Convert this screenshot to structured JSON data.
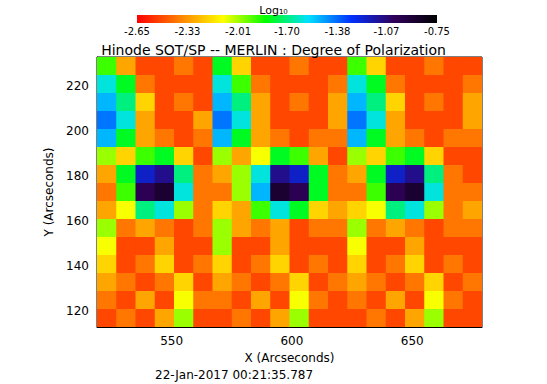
{
  "chart_data": {
    "type": "heatmap",
    "title": "Hinode SOT/SP -- MERLIN : Degree of Polarization",
    "x_label": "X (Arcseconds)",
    "y_label": "Y (Arcseconds)",
    "annotation": "22-Jan-2017 00:21:35.787",
    "xlim": [
      519,
      679
    ],
    "ylim": [
      113,
      233
    ],
    "xticks": [
      550,
      600,
      650
    ],
    "yticks": [
      120,
      140,
      160,
      180,
      200,
      220
    ],
    "x": [
      523,
      531,
      539,
      547,
      555,
      563,
      571,
      579,
      587,
      595,
      603,
      611,
      619,
      627,
      635,
      643,
      651,
      659,
      667,
      675
    ],
    "y": [
      229,
      221,
      213,
      205,
      197,
      189,
      181,
      173,
      165,
      157,
      149,
      141,
      133,
      125,
      117
    ],
    "values": [
      [
        -1.9,
        -2.3,
        -2.5,
        -2.5,
        -2.4,
        -2.5,
        -1.8,
        -2.2,
        -2.5,
        -2.5,
        -2.4,
        -2.5,
        -2.5,
        -1.9,
        -2.2,
        -2.5,
        -2.5,
        -2.4,
        -2.5,
        -2.5
      ],
      [
        -1.6,
        -1.8,
        -2.4,
        -2.5,
        -2.5,
        -2.5,
        -1.6,
        -1.9,
        -2.4,
        -2.5,
        -2.5,
        -2.5,
        -2.4,
        -1.6,
        -1.8,
        -2.4,
        -2.5,
        -2.5,
        -2.5,
        -2.4
      ],
      [
        -1.5,
        -1.7,
        -2.2,
        -2.5,
        -2.4,
        -2.5,
        -1.5,
        -1.7,
        -2.3,
        -2.5,
        -2.4,
        -2.5,
        -2.3,
        -1.5,
        -1.7,
        -2.2,
        -2.5,
        -2.4,
        -2.5,
        -2.3
      ],
      [
        -1.4,
        -1.6,
        -2.3,
        -2.5,
        -2.5,
        -2.3,
        -1.4,
        -1.6,
        -2.3,
        -2.5,
        -2.5,
        -2.5,
        -2.3,
        -1.4,
        -1.6,
        -2.3,
        -2.5,
        -2.5,
        -2.5,
        -2.3
      ],
      [
        -1.5,
        -1.8,
        -2.3,
        -2.4,
        -2.5,
        -2.4,
        -1.5,
        -1.8,
        -2.3,
        -2.4,
        -2.5,
        -2.4,
        -2.4,
        -1.5,
        -1.8,
        -2.3,
        -2.4,
        -2.5,
        -2.4,
        -2.4
      ],
      [
        -2.0,
        -2.2,
        -1.9,
        -1.8,
        -2.2,
        -2.5,
        -2.0,
        -2.3,
        -2.1,
        -1.8,
        -1.9,
        -2.3,
        -2.5,
        -2.0,
        -2.2,
        -1.9,
        -1.8,
        -2.2,
        -2.5,
        -2.5
      ],
      [
        -2.3,
        -1.8,
        -1.2,
        -1.1,
        -1.7,
        -2.4,
        -2.3,
        -2.0,
        -1.6,
        -1.1,
        -1.2,
        -1.8,
        -2.4,
        -2.3,
        -1.8,
        -1.2,
        -1.1,
        -1.7,
        -2.4,
        -2.5
      ],
      [
        -2.4,
        -1.9,
        -1.0,
        -0.9,
        -1.6,
        -2.4,
        -2.4,
        -2.0,
        -1.5,
        -0.9,
        -1.0,
        -1.8,
        -2.4,
        -2.4,
        -1.9,
        -1.0,
        -0.9,
        -1.6,
        -2.4,
        -2.4
      ],
      [
        -2.3,
        -2.1,
        -1.7,
        -1.6,
        -2.0,
        -2.4,
        -2.2,
        -2.3,
        -1.9,
        -1.6,
        -1.8,
        -2.2,
        -2.3,
        -2.2,
        -2.1,
        -1.7,
        -1.6,
        -2.0,
        -2.4,
        -2.3
      ],
      [
        -2.0,
        -2.4,
        -2.3,
        -2.4,
        -2.5,
        -2.4,
        -2.0,
        -2.3,
        -2.4,
        -2.3,
        -2.5,
        -2.4,
        -2.4,
        -2.0,
        -2.4,
        -2.3,
        -2.4,
        -2.5,
        -2.4,
        -2.4
      ],
      [
        -2.1,
        -2.5,
        -2.5,
        -2.3,
        -2.5,
        -2.5,
        -2.0,
        -2.5,
        -2.5,
        -2.3,
        -2.5,
        -2.5,
        -2.5,
        -2.1,
        -2.5,
        -2.5,
        -2.3,
        -2.5,
        -2.5,
        -2.5
      ],
      [
        -2.2,
        -2.5,
        -2.4,
        -2.2,
        -2.5,
        -2.4,
        -2.2,
        -2.5,
        -2.4,
        -2.2,
        -2.5,
        -2.4,
        -2.5,
        -2.2,
        -2.5,
        -2.4,
        -2.2,
        -2.5,
        -2.4,
        -2.5
      ],
      [
        -2.3,
        -2.4,
        -2.5,
        -2.4,
        -2.2,
        -2.5,
        -2.3,
        -2.4,
        -2.5,
        -2.4,
        -2.2,
        -2.5,
        -2.4,
        -2.3,
        -2.4,
        -2.5,
        -2.4,
        -2.2,
        -2.5,
        -2.4
      ],
      [
        -2.4,
        -2.5,
        -2.3,
        -2.5,
        -2.1,
        -2.4,
        -2.4,
        -2.5,
        -2.3,
        -2.5,
        -2.1,
        -2.4,
        -2.5,
        -2.4,
        -2.5,
        -2.3,
        -2.5,
        -2.1,
        -2.4,
        -2.5
      ],
      [
        -2.5,
        -2.4,
        -2.5,
        -2.3,
        -2.0,
        -2.5,
        -2.5,
        -2.4,
        -2.5,
        -2.3,
        -2.0,
        -2.5,
        -2.5,
        -2.5,
        -2.4,
        -2.5,
        -2.3,
        -2.0,
        -2.5,
        -2.5
      ]
    ],
    "colorbar_label": "Log₁₀",
    "colorbar_lim": [
      -2.65,
      -0.75
    ],
    "colorbar_ticks": [
      -2.65,
      -2.33,
      -2.01,
      {
        "value": -1.7,
        "label": "-1.70"
      },
      -1.38,
      -1.07,
      -0.75
    ]
  }
}
